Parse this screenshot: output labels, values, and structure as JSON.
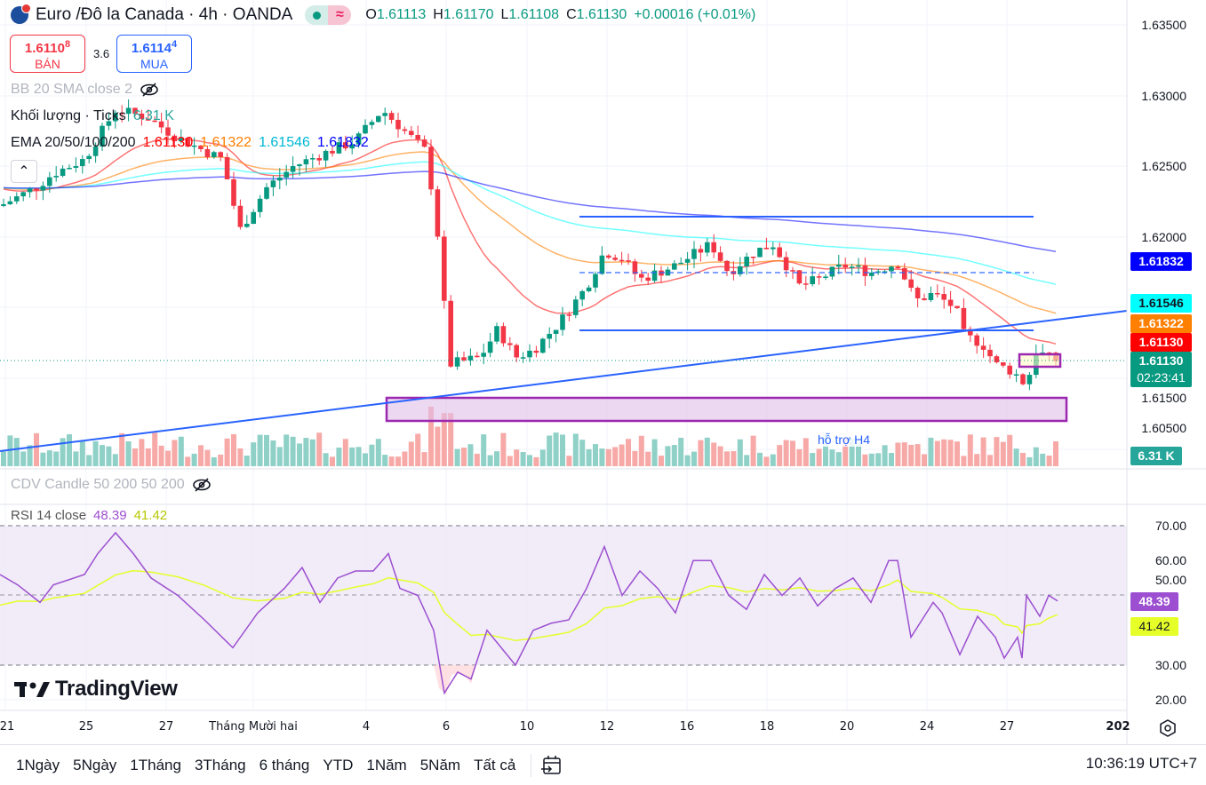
{
  "header": {
    "symbol_title": "Euro /Đô la Canada · 4h · OANDA",
    "wave_glyph": "≈",
    "ohlc": {
      "o_label": "O",
      "o_value": "1.61113",
      "h_label": "H",
      "h_value": "1.61170",
      "l_label": "L",
      "l_value": "1.61108",
      "c_label": "C",
      "c_value": "1.61130",
      "change": "+0.00016 (+0.01%)"
    }
  },
  "trade": {
    "sell_price_main": "1.6110",
    "sell_price_sup": "8",
    "sell_label": "BÁN",
    "spread": "3.6",
    "buy_price_main": "1.6114",
    "buy_price_sup": "4",
    "buy_label": "MUA"
  },
  "indicators": {
    "bb": {
      "label": "BB 20 SMA close 2"
    },
    "volume": {
      "label": "Khối lượng · Ticks",
      "value": "6.31 K"
    },
    "ema": {
      "label": "EMA 20/50/100/200",
      "values": [
        "1.61130",
        "1.61322",
        "1.61546",
        "1.61832"
      ]
    },
    "cdv": {
      "label": "CDV Candle 50 200 50 200"
    },
    "rsi": {
      "label": "RSI 14 close",
      "value": "48.39",
      "ma_value": "41.42"
    }
  },
  "price_axis": {
    "ticks": [
      "1.63500",
      "1.63000",
      "1.62500",
      "1.62000",
      "1.61500",
      "1.60500"
    ],
    "tags": {
      "ema200": "1.61832",
      "ema100": "1.61546",
      "ema50": "1.61322",
      "ema20": "1.61130",
      "last_price": "1.61130",
      "countdown": "02:23:41",
      "volume": "6.31 K"
    }
  },
  "rsi_axis": {
    "ticks": [
      "70.00",
      "60.00",
      "50.00",
      "30.00",
      "20.00"
    ],
    "tags": {
      "rsi": "48.39",
      "rsi_ma": "41.42"
    }
  },
  "time_axis": {
    "labels": [
      "21",
      "25",
      "27",
      "Tháng Mười hai",
      "4",
      "6",
      "10",
      "12",
      "16",
      "18",
      "20",
      "24",
      "27",
      "202"
    ]
  },
  "annotations": {
    "support_label": "hỗ trợ H4"
  },
  "branding": {
    "logo_text": "TradingView"
  },
  "bottom_bar": {
    "ranges": [
      "1Ngày",
      "5Ngày",
      "1Tháng",
      "3Tháng",
      "6 tháng",
      "YTD",
      "1Năm",
      "5Năm",
      "Tất cả"
    ],
    "clock": "10:36:19 UTC+7"
  },
  "colors": {
    "up": "#089981",
    "down": "#f23645",
    "ema20": "#ff0000",
    "ema50": "#ff7f00",
    "ema100": "#00ffff",
    "ema200": "#0000ff",
    "rsi": "#9c4fd0",
    "rsi_ma": "#e6ff29",
    "trendline": "#2962ff",
    "zone": "#9c27b0"
  }
}
